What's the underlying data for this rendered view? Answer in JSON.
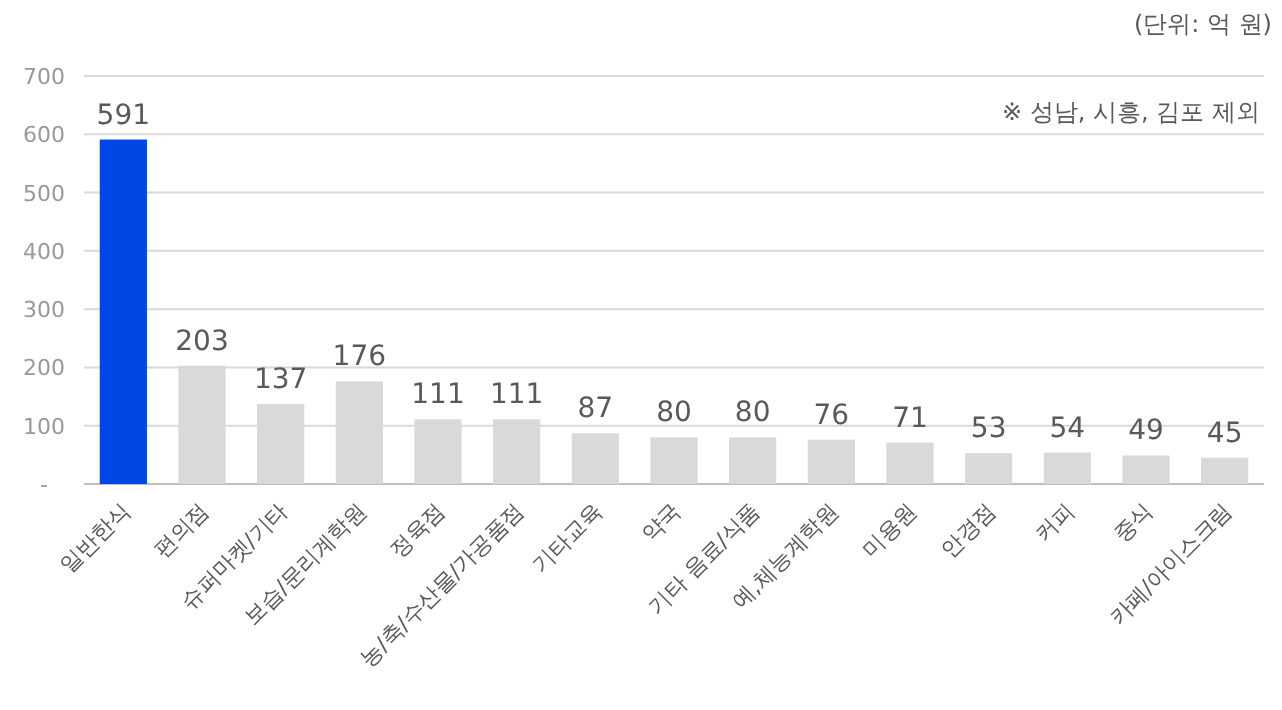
{
  "chart_data": {
    "type": "bar",
    "categories": [
      "일반한식",
      "편의점",
      "슈퍼마켓/기타",
      "보습/문리계학원",
      "정육점",
      "농/축/수산물/가공품점",
      "기타교육",
      "약국",
      "기타 음료/식품",
      "예,체능계학원",
      "미용원",
      "안경점",
      "커피",
      "중식",
      "카페/아이스크림"
    ],
    "values": [
      591,
      203,
      137,
      176,
      111,
      111,
      87,
      80,
      80,
      76,
      71,
      53,
      54,
      49,
      45
    ],
    "colors": [
      "#0046e6",
      "#d9d9d9",
      "#d9d9d9",
      "#d9d9d9",
      "#d9d9d9",
      "#d9d9d9",
      "#d9d9d9",
      "#d9d9d9",
      "#d9d9d9",
      "#d9d9d9",
      "#d9d9d9",
      "#d9d9d9",
      "#d9d9d9",
      "#d9d9d9",
      "#d9d9d9"
    ],
    "ylim": [
      0,
      700
    ],
    "yticks": [
      {
        "value": 0,
        "label": "-"
      },
      100,
      200,
      300,
      400,
      500,
      600,
      700
    ],
    "grid": "y",
    "data_labels": true,
    "annotations": [
      "(단위: 억 원)",
      "※ 성남, 시흥, 김포 제외"
    ]
  }
}
